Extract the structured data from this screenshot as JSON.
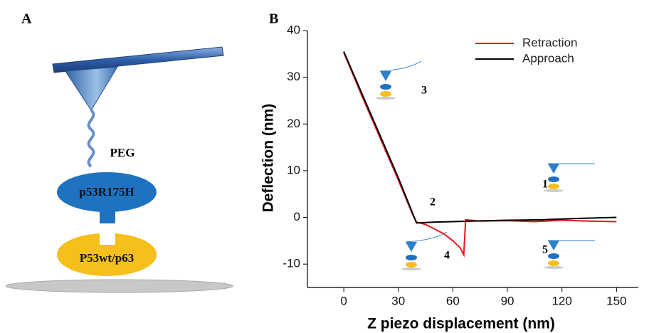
{
  "panel_a": {
    "label": "A",
    "linker": "PEG",
    "protein_top": "p53R175H",
    "protein_bottom": "P53wt/p63"
  },
  "chart_data": {
    "type": "line",
    "panel_label": "B",
    "x_label": "Z piezo displacement (nm)",
    "y_label": "Deflection (nm)",
    "xlim": [
      -20,
      162
    ],
    "ylim": [
      -15,
      40
    ],
    "xticks": [
      0,
      30,
      60,
      90,
      120,
      150
    ],
    "yticks": [
      -10,
      0,
      10,
      20,
      30,
      40
    ],
    "legend": "upper right",
    "series": [
      {
        "name": "Retraction",
        "color": "#e8141b",
        "x": [
          0,
          10,
          20,
          30,
          38,
          40,
          45,
          50,
          55,
          60,
          64,
          66,
          67,
          75,
          90,
          105,
          120,
          135,
          150
        ],
        "values": [
          35.3,
          26,
          17,
          8,
          0.5,
          -1,
          -1.5,
          -2.5,
          -3.5,
          -5,
          -6.5,
          -8,
          -0.5,
          -0.8,
          -0.7,
          -0.9,
          -0.6,
          -0.8,
          -0.9
        ]
      },
      {
        "name": "Approach",
        "color": "#000000",
        "x": [
          0,
          10,
          20,
          30,
          40,
          50,
          70,
          90,
          110,
          130,
          150
        ],
        "values": [
          35.5,
          26.5,
          17.5,
          8.5,
          -1.2,
          -1,
          -0.8,
          -0.6,
          -0.5,
          -0.2,
          0
        ]
      }
    ],
    "annotations": [
      "3",
      "2",
      "1",
      "4",
      "5"
    ]
  }
}
